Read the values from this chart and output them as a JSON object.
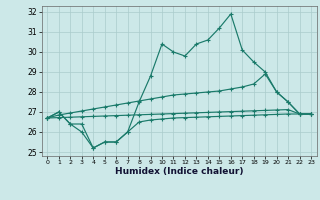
{
  "title": "",
  "xlabel": "Humidex (Indice chaleur)",
  "bg_color": "#cce8e8",
  "grid_color": "#aacccc",
  "line_color": "#1a7a6a",
  "x_values": [
    0,
    1,
    2,
    3,
    4,
    5,
    6,
    7,
    8,
    9,
    10,
    11,
    12,
    13,
    14,
    15,
    16,
    17,
    18,
    19,
    20,
    21,
    22,
    23
  ],
  "s1": [
    26.7,
    27.0,
    26.4,
    26.4,
    25.2,
    25.5,
    25.5,
    26.0,
    27.5,
    28.8,
    30.4,
    30.0,
    29.8,
    30.4,
    30.6,
    31.2,
    31.9,
    30.1,
    29.5,
    29.0,
    28.0,
    27.5,
    26.9,
    26.9
  ],
  "s2": [
    26.7,
    26.85,
    26.95,
    27.05,
    27.15,
    27.25,
    27.35,
    27.45,
    27.55,
    27.65,
    27.75,
    27.85,
    27.9,
    27.95,
    28.0,
    28.05,
    28.15,
    28.25,
    28.4,
    28.9,
    28.0,
    27.5,
    26.9,
    26.9
  ],
  "s3": [
    26.7,
    26.72,
    26.74,
    26.76,
    26.78,
    26.8,
    26.82,
    26.84,
    26.86,
    26.88,
    26.9,
    26.92,
    26.94,
    26.96,
    26.98,
    27.0,
    27.02,
    27.04,
    27.06,
    27.08,
    27.1,
    27.12,
    26.9,
    26.9
  ],
  "s4": [
    26.7,
    27.0,
    26.4,
    26.0,
    25.2,
    25.5,
    25.5,
    26.0,
    26.5,
    26.6,
    26.65,
    26.7,
    26.72,
    26.74,
    26.76,
    26.78,
    26.8,
    26.82,
    26.84,
    26.86,
    26.88,
    26.9,
    26.9,
    26.9
  ],
  "ylim": [
    24.8,
    32.3
  ],
  "xlim": [
    -0.5,
    23.5
  ],
  "yticks": [
    25,
    26,
    27,
    28,
    29,
    30,
    31,
    32
  ],
  "xticks": [
    0,
    1,
    2,
    3,
    4,
    5,
    6,
    7,
    8,
    9,
    10,
    11,
    12,
    13,
    14,
    15,
    16,
    17,
    18,
    19,
    20,
    21,
    22,
    23
  ]
}
